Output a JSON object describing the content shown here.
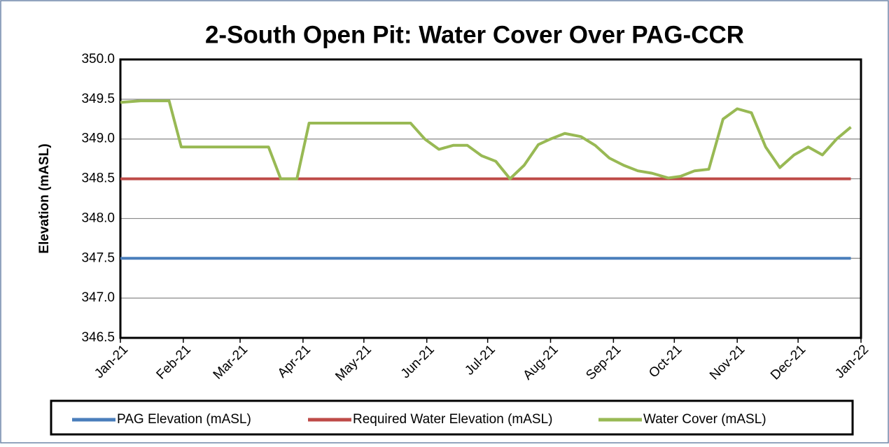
{
  "chart_data": {
    "type": "line",
    "title": "2-South Open Pit: Water Cover Over PAG-CCR",
    "y_label": "Elevation (mASL)",
    "xlim": [
      44197,
      44562
    ],
    "xticks": [
      {
        "value": 44197,
        "label": "Jan-21"
      },
      {
        "value": 44228,
        "label": "Feb-21"
      },
      {
        "value": 44256,
        "label": "Mar-21"
      },
      {
        "value": 44287,
        "label": "Apr-21"
      },
      {
        "value": 44317,
        "label": "May-21"
      },
      {
        "value": 44348,
        "label": "Jun-21"
      },
      {
        "value": 44378,
        "label": "Jul-21"
      },
      {
        "value": 44409,
        "label": "Aug-21"
      },
      {
        "value": 44440,
        "label": "Sep-21"
      },
      {
        "value": 44470,
        "label": "Oct-21"
      },
      {
        "value": 44501,
        "label": "Nov-21"
      },
      {
        "value": 44531,
        "label": "Dec-21"
      },
      {
        "value": 44562,
        "label": "Jan-22"
      }
    ],
    "ylim": [
      346.5,
      350.0
    ],
    "yticks": [
      {
        "value": 346.5,
        "label": "346.5"
      },
      {
        "value": 347.0,
        "label": "347.0"
      },
      {
        "value": 347.5,
        "label": "347.5"
      },
      {
        "value": 348.0,
        "label": "348.0"
      },
      {
        "value": 348.5,
        "label": "348.5"
      },
      {
        "value": 349.0,
        "label": "349.0"
      },
      {
        "value": 349.5,
        "label": "349.5"
      },
      {
        "value": 350.0,
        "label": "350.0"
      }
    ],
    "grid": true,
    "legend": "bottom",
    "series": [
      {
        "name": "PAG Elevation (mASL)",
        "color": "#4a7ebb",
        "x": [
          44197,
          44557
        ],
        "values": [
          347.5,
          347.5
        ]
      },
      {
        "name": "Required Water Elevation (mASL)",
        "color": "#be4b48",
        "x": [
          44197,
          44557
        ],
        "values": [
          348.5,
          348.5
        ]
      },
      {
        "name": "Water Cover (mASL)",
        "color": "#98b954",
        "x": [
          44197,
          44207,
          44221,
          44227,
          44270,
          44276,
          44284,
          44290,
          44340,
          44347,
          44354,
          44361,
          44368,
          44375,
          44382,
          44389,
          44396,
          44403,
          44409,
          44416,
          44424,
          44431,
          44438,
          44445,
          44452,
          44459,
          44467,
          44473,
          44480,
          44487,
          44494,
          44501,
          44508,
          44515,
          44522,
          44529,
          44536,
          44543,
          44550,
          44557
        ],
        "values": [
          349.46,
          349.48,
          349.48,
          348.9,
          348.9,
          348.5,
          348.5,
          349.2,
          349.2,
          349.0,
          348.87,
          348.92,
          348.92,
          348.79,
          348.72,
          348.5,
          348.67,
          348.93,
          349.0,
          349.07,
          349.03,
          348.92,
          348.76,
          348.67,
          348.6,
          348.57,
          348.51,
          348.53,
          348.6,
          348.62,
          349.25,
          349.38,
          349.33,
          348.9,
          348.64,
          348.8,
          348.9,
          348.8,
          349.0,
          349.15
        ]
      }
    ]
  }
}
